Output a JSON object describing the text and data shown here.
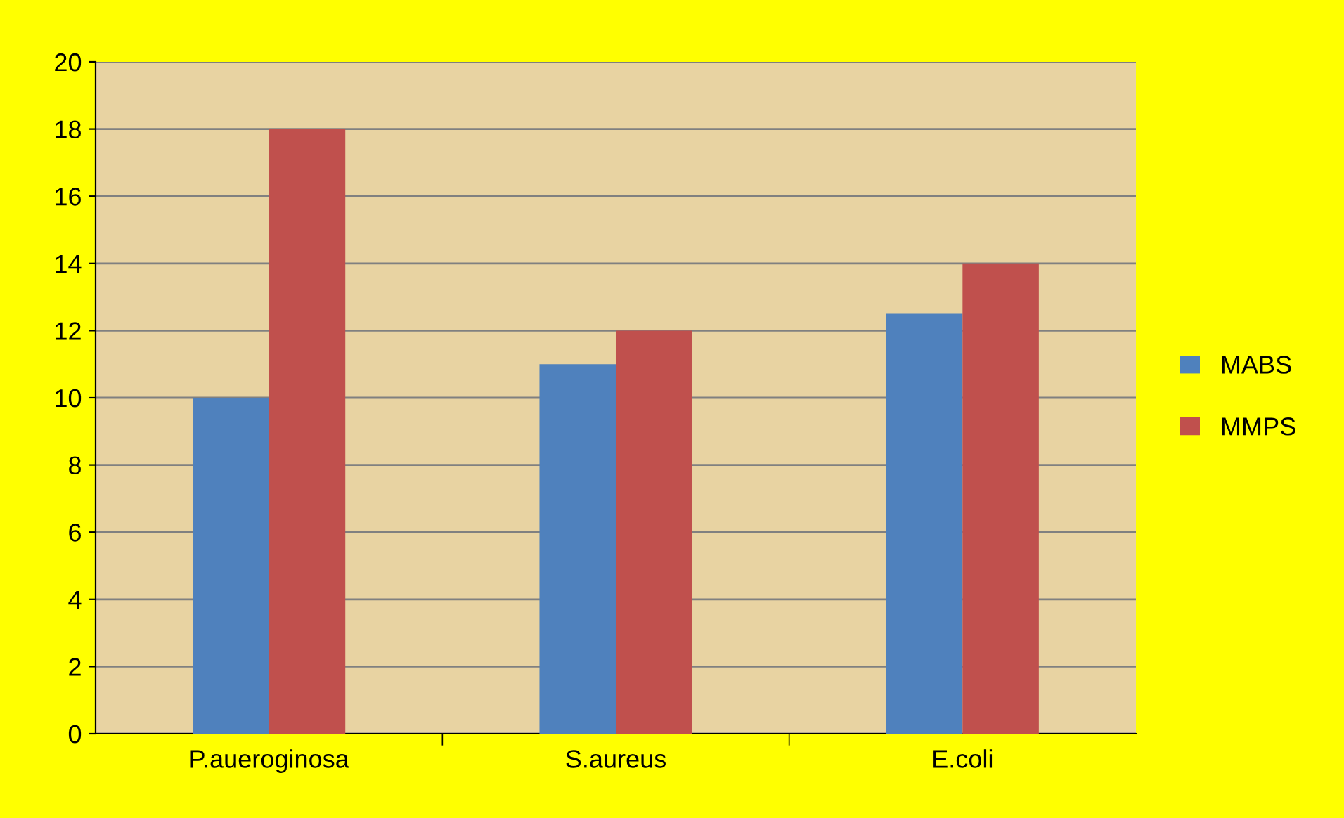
{
  "chart_data": {
    "type": "bar",
    "categories": [
      "P.aueroginosa",
      "S.aureus",
      "E.coli"
    ],
    "series": [
      {
        "name": "MABS",
        "color": "#4f81bd",
        "values": [
          10,
          11,
          12.5
        ]
      },
      {
        "name": "MMPS",
        "color": "#c0504d",
        "values": [
          18,
          12,
          14
        ]
      }
    ],
    "ylim": [
      0,
      20
    ],
    "yticks": [
      0,
      2,
      4,
      6,
      8,
      10,
      12,
      14,
      16,
      18,
      20
    ],
    "grid": "y",
    "legend": "right"
  }
}
